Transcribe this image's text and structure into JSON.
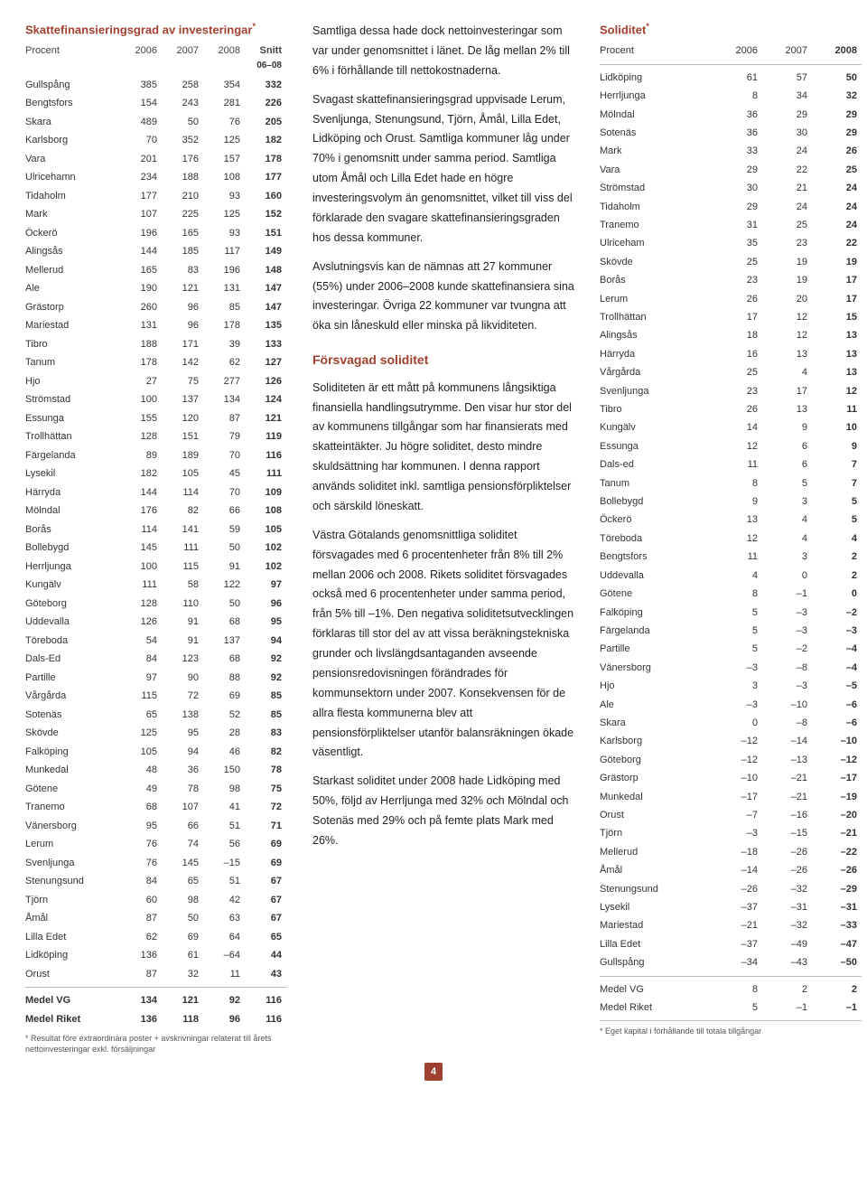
{
  "table1": {
    "title": "Skattefinansieringsgrad av investeringar",
    "title_sup": "*",
    "head": {
      "c0": "Procent",
      "c1": "2006",
      "c2": "2007",
      "c3": "2008",
      "c4": "Snitt",
      "sub4": "06–08"
    },
    "rows": [
      [
        "Gullspång",
        "385",
        "258",
        "354",
        "332"
      ],
      [
        "Bengtsfors",
        "154",
        "243",
        "281",
        "226"
      ],
      [
        "Skara",
        "489",
        "50",
        "76",
        "205"
      ],
      [
        "Karlsborg",
        "70",
        "352",
        "125",
        "182"
      ],
      [
        "Vara",
        "201",
        "176",
        "157",
        "178"
      ],
      [
        "Ulricehamn",
        "234",
        "188",
        "108",
        "177"
      ],
      [
        "Tidaholm",
        "177",
        "210",
        "93",
        "160"
      ],
      [
        "Mark",
        "107",
        "225",
        "125",
        "152"
      ],
      [
        "Öckerö",
        "196",
        "165",
        "93",
        "151"
      ],
      [
        "Alingsås",
        "144",
        "185",
        "117",
        "149"
      ],
      [
        "Mellerud",
        "165",
        "83",
        "196",
        "148"
      ],
      [
        "Ale",
        "190",
        "121",
        "131",
        "147"
      ],
      [
        "Grästorp",
        "260",
        "96",
        "85",
        "147"
      ],
      [
        "Mariestad",
        "131",
        "96",
        "178",
        "135"
      ],
      [
        "Tibro",
        "188",
        "171",
        "39",
        "133"
      ],
      [
        "Tanum",
        "178",
        "142",
        "62",
        "127"
      ],
      [
        "Hjo",
        "27",
        "75",
        "277",
        "126"
      ],
      [
        "Strömstad",
        "100",
        "137",
        "134",
        "124"
      ],
      [
        "Essunga",
        "155",
        "120",
        "87",
        "121"
      ],
      [
        "Trollhättan",
        "128",
        "151",
        "79",
        "119"
      ],
      [
        "Färgelanda",
        "89",
        "189",
        "70",
        "116"
      ],
      [
        "Lysekil",
        "182",
        "105",
        "45",
        "111"
      ],
      [
        "Härryda",
        "144",
        "114",
        "70",
        "109"
      ],
      [
        "Mölndal",
        "176",
        "82",
        "66",
        "108"
      ],
      [
        "Borås",
        "114",
        "141",
        "59",
        "105"
      ],
      [
        "Bollebygd",
        "145",
        "111",
        "50",
        "102"
      ],
      [
        "Herrljunga",
        "100",
        "115",
        "91",
        "102"
      ],
      [
        "Kungälv",
        "111",
        "58",
        "122",
        "97"
      ],
      [
        "Göteborg",
        "128",
        "110",
        "50",
        "96"
      ],
      [
        "Uddevalla",
        "126",
        "91",
        "68",
        "95"
      ],
      [
        "Töreboda",
        "54",
        "91",
        "137",
        "94"
      ],
      [
        "Dals-Ed",
        "84",
        "123",
        "68",
        "92"
      ],
      [
        "Partille",
        "97",
        "90",
        "88",
        "92"
      ],
      [
        "Vårgårda",
        "115",
        "72",
        "69",
        "85"
      ],
      [
        "Sotenäs",
        "65",
        "138",
        "52",
        "85"
      ],
      [
        "Skövde",
        "125",
        "95",
        "28",
        "83"
      ],
      [
        "Falköping",
        "105",
        "94",
        "46",
        "82"
      ],
      [
        "Munkedal",
        "48",
        "36",
        "150",
        "78"
      ],
      [
        "Götene",
        "49",
        "78",
        "98",
        "75"
      ],
      [
        "Tranemo",
        "68",
        "107",
        "41",
        "72"
      ],
      [
        "Vänersborg",
        "95",
        "66",
        "51",
        "71"
      ],
      [
        "Lerum",
        "76",
        "74",
        "56",
        "69"
      ],
      [
        "Svenljunga",
        "76",
        "145",
        "–15",
        "69"
      ],
      [
        "Stenungsund",
        "84",
        "65",
        "51",
        "67"
      ],
      [
        "Tjörn",
        "60",
        "98",
        "42",
        "67"
      ],
      [
        "Åmål",
        "87",
        "50",
        "63",
        "67"
      ],
      [
        "Lilla Edet",
        "62",
        "69",
        "64",
        "65"
      ],
      [
        "Lidköping",
        "136",
        "61",
        "–64",
        "44"
      ],
      [
        "Orust",
        "87",
        "32",
        "11",
        "43"
      ]
    ],
    "foot": [
      [
        "Medel VG",
        "134",
        "121",
        "92",
        "116"
      ],
      [
        "Medel Riket",
        "136",
        "118",
        "96",
        "116"
      ]
    ],
    "note": "* Resultat före extraordinära poster + avskrivningar relaterat till årets nettoinvesteringar exkl. försäljningar"
  },
  "body": {
    "p1": "Samtliga dessa hade dock nettoinvesteringar som var under genomsnittet i länet. De låg mellan 2% till 6% i förhållande till nettokostnaderna.",
    "p2": "Svagast skattefinansieringsgrad uppvisade Lerum, Svenljunga, Stenungsund, Tjörn, Åmål, Lilla Edet, Lidköping och Orust. Samtliga kommuner låg under 70% i genomsnitt under samma period. Samtliga utom Åmål och Lilla Edet hade en högre investeringsvolym än genomsnittet, vilket till viss del förklarade den svagare skattefinansieringsgraden hos dessa kommuner.",
    "p3": "Avslutningsvis kan de nämnas att 27 kommuner (55%) under 2006–2008 kunde skattefinansiera sina investeringar. Övriga 22 kommuner var tvungna att öka sin låneskuld eller minska på likviditeten.",
    "h1": "Försvagad soliditet",
    "p4": "Soliditeten är ett mått på kommunens långsiktiga finansiella handlingsutrymme. Den visar hur stor del av kommunens tillgångar som har finansierats med skatteintäkter. Ju högre soliditet, desto mindre skuldsättning har kommunen. I denna rapport används soliditet inkl. samtliga pensionsförpliktelser och särskild löneskatt.",
    "p5": "Västra Götalands genomsnittliga soliditet försvagades med 6 procentenheter från 8% till 2% mellan 2006 och 2008. Rikets soliditet försvagades också med 6 procentenheter under samma period, från 5% till –1%. Den negativa soliditetsutvecklingen förklaras till stor del av att vissa beräkningstekniska grunder och livslängdsantaganden avseende pensionsredovisningen förändrades för kommunsektorn under 2007. Konsekvensen för de allra flesta kommunerna blev att pensionsförpliktelser utanför balansräkningen ökade väsentligt.",
    "p6": "Starkast soliditet under 2008 hade Lidköping med 50%, följd av Herrljunga med 32% och Mölndal och Sotenäs med 29% och på femte plats Mark med 26%."
  },
  "table2": {
    "title": "Soliditet",
    "title_sup": "*",
    "head": {
      "c0": "Procent",
      "c1": "2006",
      "c2": "2007",
      "c3": "2008"
    },
    "rows": [
      [
        "Lidköping",
        "61",
        "57",
        "50"
      ],
      [
        "Herrljunga",
        "8",
        "34",
        "32"
      ],
      [
        "Mölndal",
        "36",
        "29",
        "29"
      ],
      [
        "Sotenäs",
        "36",
        "30",
        "29"
      ],
      [
        "Mark",
        "33",
        "24",
        "26"
      ],
      [
        "Vara",
        "29",
        "22",
        "25"
      ],
      [
        "Strömstad",
        "30",
        "21",
        "24"
      ],
      [
        "Tidaholm",
        "29",
        "24",
        "24"
      ],
      [
        "Tranemo",
        "31",
        "25",
        "24"
      ],
      [
        "Ulriceham",
        "35",
        "23",
        "22"
      ],
      [
        "Skövde",
        "25",
        "19",
        "19"
      ],
      [
        "Borås",
        "23",
        "19",
        "17"
      ],
      [
        "Lerum",
        "26",
        "20",
        "17"
      ],
      [
        "Trollhättan",
        "17",
        "12",
        "15"
      ],
      [
        "Alingsås",
        "18",
        "12",
        "13"
      ],
      [
        "Härryda",
        "16",
        "13",
        "13"
      ],
      [
        "Vårgårda",
        "25",
        "4",
        "13"
      ],
      [
        "Svenljunga",
        "23",
        "17",
        "12"
      ],
      [
        "Tibro",
        "26",
        "13",
        "11"
      ],
      [
        "Kungälv",
        "14",
        "9",
        "10"
      ],
      [
        "Essunga",
        "12",
        "6",
        "9"
      ],
      [
        "Dals-ed",
        "11",
        "6",
        "7"
      ],
      [
        "Tanum",
        "8",
        "5",
        "7"
      ],
      [
        "Bollebygd",
        "9",
        "3",
        "5"
      ],
      [
        "Öckerö",
        "13",
        "4",
        "5"
      ],
      [
        "Töreboda",
        "12",
        "4",
        "4"
      ],
      [
        "Bengtsfors",
        "11",
        "3",
        "2"
      ],
      [
        "Uddevalla",
        "4",
        "0",
        "2"
      ],
      [
        "Götene",
        "8",
        "–1",
        "0"
      ],
      [
        "Falköping",
        "5",
        "–3",
        "–2"
      ],
      [
        "Färgelanda",
        "5",
        "–3",
        "–3"
      ],
      [
        "Partille",
        "5",
        "–2",
        "–4"
      ],
      [
        "Vänersborg",
        "–3",
        "–8",
        "–4"
      ],
      [
        "Hjo",
        "3",
        "–3",
        "–5"
      ],
      [
        "Ale",
        "–3",
        "–10",
        "–6"
      ],
      [
        "Skara",
        "0",
        "–8",
        "–6"
      ],
      [
        "Karlsborg",
        "–12",
        "–14",
        "–10"
      ],
      [
        "Göteborg",
        "–12",
        "–13",
        "–12"
      ],
      [
        "Grästorp",
        "–10",
        "–21",
        "–17"
      ],
      [
        "Munkedal",
        "–17",
        "–21",
        "–19"
      ],
      [
        "Orust",
        "–7",
        "–16",
        "–20"
      ],
      [
        "Tjörn",
        "–3",
        "–15",
        "–21"
      ],
      [
        "Mellerud",
        "–18",
        "–26",
        "–22"
      ],
      [
        "Åmål",
        "–14",
        "–26",
        "–26"
      ],
      [
        "Stenungsund",
        "–26",
        "–32",
        "–29"
      ],
      [
        "Lysekil",
        "–37",
        "–31",
        "–31"
      ],
      [
        "Mariestad",
        "–21",
        "–32",
        "–33"
      ],
      [
        "Lilla Edet",
        "–37",
        "–49",
        "–47"
      ],
      [
        "Gullspång",
        "–34",
        "–43",
        "–50"
      ]
    ],
    "foot": [
      [
        "Medel VG",
        "8",
        "2",
        "2"
      ],
      [
        "Medel Riket",
        "5",
        "–1",
        "–1"
      ]
    ],
    "note": "* Eget kapital i förhållande till totala tillgångar"
  },
  "page_number": "4"
}
